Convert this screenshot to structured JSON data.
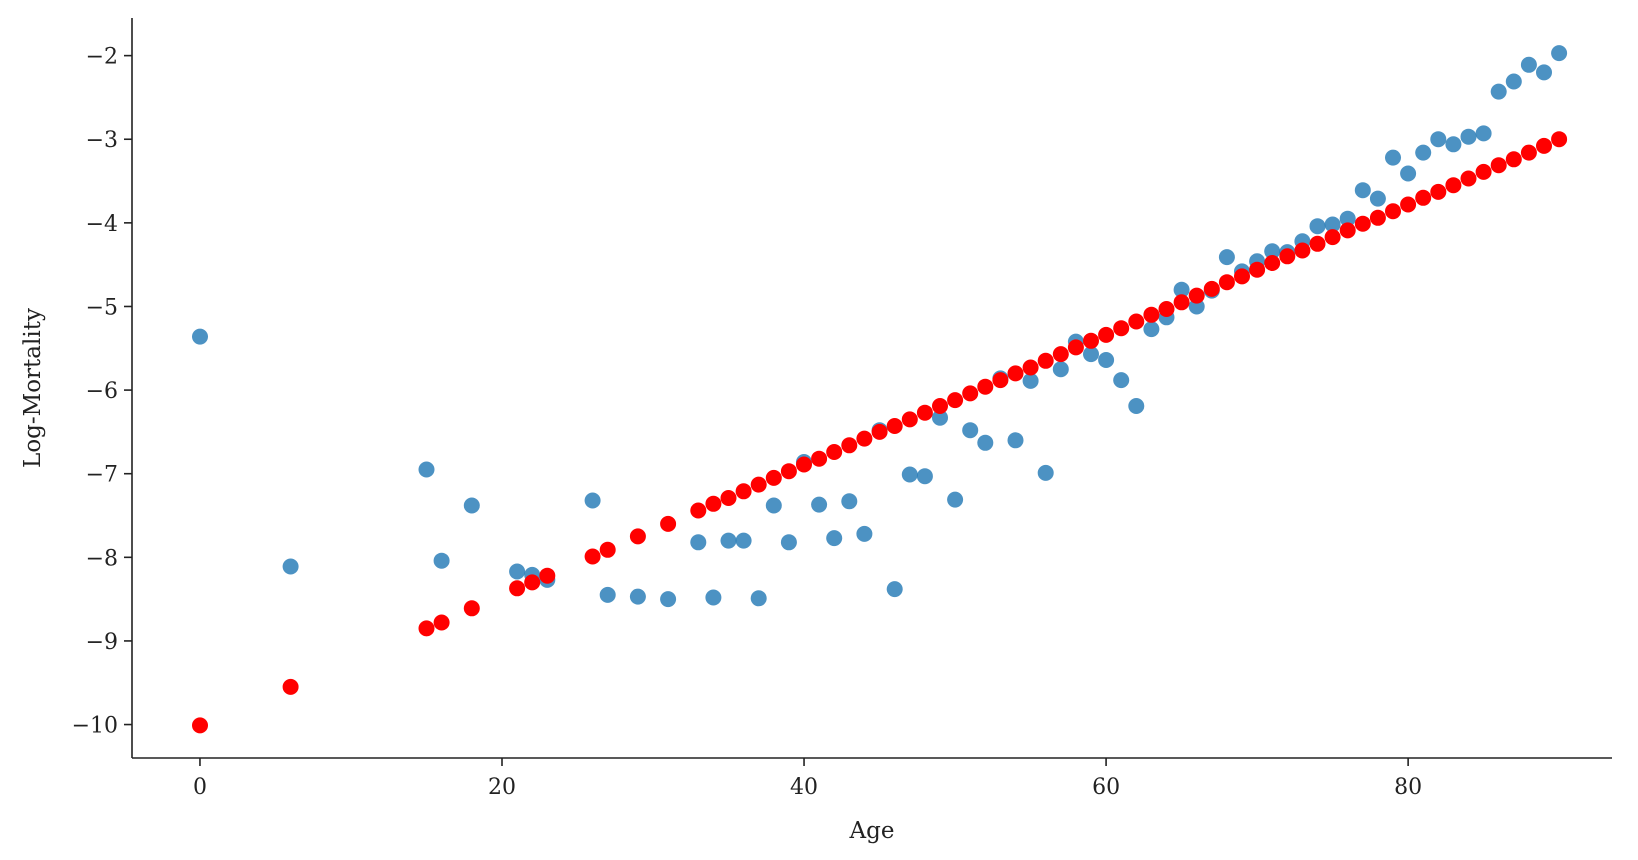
{
  "chart_data": {
    "type": "scatter",
    "title": "",
    "xlabel": "Age",
    "ylabel": "Log-Mortality",
    "xlim": [
      -4.5,
      93.5
    ],
    "ylim": [
      -10.4,
      -1.55
    ],
    "xticks": [
      0,
      20,
      40,
      60,
      80
    ],
    "xtick_labels": [
      "0",
      "20",
      "40",
      "60",
      "80"
    ],
    "yticks": [
      -10,
      -9,
      -8,
      -7,
      -6,
      -5,
      -4,
      -3,
      -2
    ],
    "ytick_labels": [
      "−10",
      "−9",
      "−8",
      "−7",
      "−6",
      "−5",
      "−4",
      "−3",
      "−2"
    ],
    "grid": false,
    "series": [
      {
        "color": "#1f77b4",
        "opacity": 0.8,
        "x": [
          0,
          6,
          15,
          16,
          18,
          21,
          22,
          23,
          26,
          27,
          29,
          31,
          33,
          34,
          35,
          36,
          37,
          38,
          39,
          40,
          41,
          42,
          43,
          44,
          45,
          46,
          47,
          48,
          49,
          50,
          51,
          52,
          53,
          54,
          55,
          56,
          57,
          58,
          59,
          60,
          61,
          62,
          63,
          64,
          65,
          66,
          67,
          68,
          69,
          70,
          71,
          72,
          73,
          74,
          75,
          76,
          77,
          78,
          79,
          80,
          81,
          82,
          83,
          84,
          85,
          86,
          87,
          88,
          89,
          90
        ],
        "y": [
          -5.36,
          -8.11,
          -6.95,
          -8.04,
          -7.38,
          -8.17,
          -8.21,
          -8.27,
          -7.32,
          -8.45,
          -8.47,
          -8.5,
          -7.82,
          -8.48,
          -7.8,
          -7.8,
          -8.49,
          -7.38,
          -7.82,
          -6.86,
          -7.37,
          -7.77,
          -7.33,
          -7.72,
          -6.48,
          -8.38,
          -7.01,
          -7.03,
          -6.33,
          -7.31,
          -6.48,
          -6.63,
          -5.86,
          -6.6,
          -5.89,
          -6.99,
          -5.75,
          -5.42,
          -5.57,
          -5.64,
          -5.88,
          -6.19,
          -5.27,
          -5.13,
          -4.8,
          -5.0,
          -4.81,
          -4.41,
          -4.58,
          -4.46,
          -4.34,
          -4.35,
          -4.22,
          -4.04,
          -4.02,
          -3.95,
          -3.61,
          -3.71,
          -3.22,
          -3.41,
          -3.16,
          -3.0,
          -3.06,
          -2.97,
          -2.93,
          -2.43,
          -2.31,
          -2.11,
          -2.2,
          -1.97
        ]
      },
      {
        "color": "#ff0000",
        "opacity": 1,
        "x": [
          0,
          6,
          15,
          16,
          18,
          21,
          22,
          23,
          26,
          27,
          29,
          31,
          33,
          34,
          35,
          36,
          37,
          38,
          39,
          40,
          41,
          42,
          43,
          44,
          45,
          46,
          47,
          48,
          49,
          50,
          51,
          52,
          53,
          54,
          55,
          56,
          57,
          58,
          59,
          60,
          61,
          62,
          63,
          64,
          65,
          66,
          67,
          68,
          69,
          70,
          71,
          72,
          73,
          74,
          75,
          76,
          77,
          78,
          79,
          80,
          81,
          82,
          83,
          84,
          85,
          86,
          87,
          88,
          89,
          90
        ],
        "y": [
          -10.01,
          -9.55,
          -8.85,
          -8.78,
          -8.61,
          -8.37,
          -8.3,
          -8.22,
          -7.99,
          -7.91,
          -7.75,
          -7.6,
          -7.44,
          -7.36,
          -7.29,
          -7.21,
          -7.13,
          -7.05,
          -6.97,
          -6.89,
          -6.82,
          -6.74,
          -6.66,
          -6.58,
          -6.5,
          -6.43,
          -6.35,
          -6.27,
          -6.19,
          -6.12,
          -6.04,
          -5.96,
          -5.88,
          -5.8,
          -5.73,
          -5.65,
          -5.57,
          -5.49,
          -5.41,
          -5.34,
          -5.26,
          -5.18,
          -5.1,
          -5.03,
          -4.95,
          -4.87,
          -4.79,
          -4.71,
          -4.64,
          -4.56,
          -4.48,
          -4.4,
          -4.33,
          -4.25,
          -4.17,
          -4.09,
          -4.01,
          -3.94,
          -3.86,
          -3.78,
          -3.7,
          -3.63,
          -3.55,
          -3.47,
          -3.39,
          -3.31,
          -3.24,
          -3.16,
          -3.08,
          -3.0
        ]
      }
    ]
  }
}
